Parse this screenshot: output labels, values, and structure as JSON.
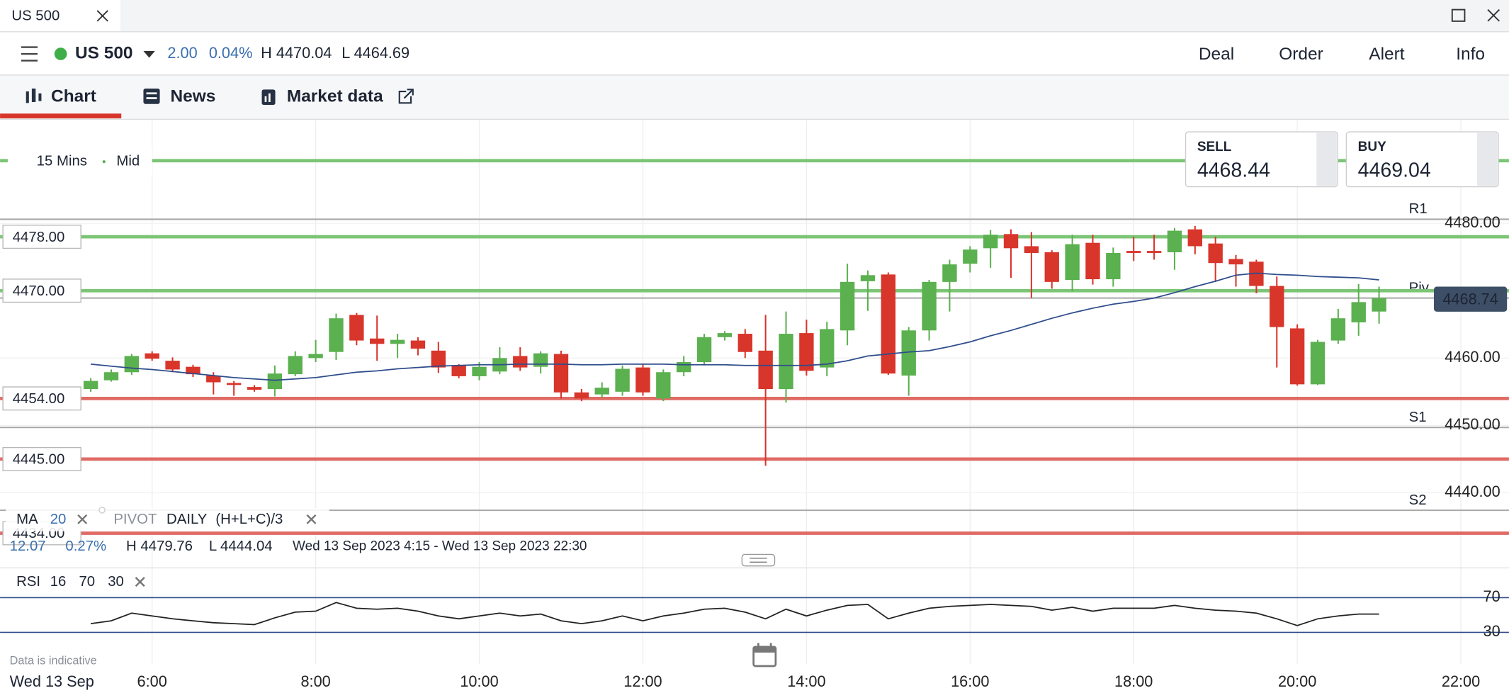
{
  "window": {
    "tab": "US 500"
  },
  "header": {
    "instrument": "US 500",
    "change": "2.00",
    "change_pct": "0.04%",
    "high": "H 4470.04",
    "low": "L 4464.69",
    "actions": [
      "Deal",
      "Order",
      "Alert",
      "Info"
    ]
  },
  "tabs": [
    "Chart",
    "News",
    "Market data"
  ],
  "chart": {
    "type": "candlestick",
    "interval": "15 Mins",
    "price_type": "Mid",
    "sell": {
      "label": "SELL",
      "price": "4468.44"
    },
    "buy": {
      "label": "BUY",
      "price": "4469.04"
    },
    "up_color": "#5bb04f",
    "down_color": "#d8352b",
    "x": [
      5.25,
      5.5,
      5.75,
      6,
      6.25,
      6.5,
      6.75,
      7,
      7.25,
      7.5,
      7.75,
      8,
      8.25,
      8.5,
      8.75,
      9,
      9.25,
      9.5,
      9.75,
      10,
      10.25,
      10.5,
      10.75,
      11,
      11.25,
      11.5,
      11.75,
      12,
      12.25,
      12.5,
      12.75,
      13,
      13.25,
      13.5,
      13.75,
      14,
      14.25,
      14.5,
      14.75,
      15,
      15.25,
      15.5,
      15.75,
      16,
      16.25,
      16.5,
      16.75,
      17,
      17.25,
      17.5,
      17.75,
      18,
      18.25,
      18.5,
      18.75,
      19,
      19.25,
      19.5,
      19.75,
      20,
      20.25,
      20.5,
      20.75,
      21
    ],
    "open": [
      4455.4,
      4456.7,
      4457.9,
      4460.7,
      4459.6,
      4458.7,
      4457.4,
      4456.3,
      4455.7,
      4455.4,
      4457.6,
      4460.0,
      4460.9,
      4466.4,
      4462.9,
      4462.1,
      4462.6,
      4461.1,
      4458.9,
      4457.3,
      4458.0,
      4460.3,
      4458.7,
      4460.6,
      4454.9,
      4454.6,
      4455.0,
      4458.6,
      4454.0,
      4457.9,
      4459.4,
      4463.1,
      4463.6,
      4461.1,
      4455.4,
      4463.7,
      4458.6,
      4464.1,
      4471.4,
      4472.4,
      4457.4,
      4464.1,
      4471.3,
      4474.0,
      4476.3,
      4478.4,
      4476.6,
      4475.7,
      4471.6,
      4477.1,
      4471.7,
      4475.9,
      4475.9,
      4475.7,
      4479.1,
      4477.0,
      4474.7,
      4474.3,
      4470.7,
      4464.4,
      4456.1,
      4462.6,
      4465.3,
      4466.9
    ],
    "high": [
      4457.0,
      4458.3,
      4460.6,
      4461.0,
      4460.1,
      4459.0,
      4457.9,
      4456.6,
      4456.0,
      4458.9,
      4461.0,
      4462.7,
      4466.6,
      4466.7,
      4466.3,
      4463.6,
      4463.1,
      4462.4,
      4459.1,
      4459.4,
      4461.6,
      4461.6,
      4461.0,
      4461.1,
      4455.4,
      4456.4,
      4458.9,
      4459.1,
      4458.3,
      4460.3,
      4463.6,
      4464.0,
      4464.3,
      4466.4,
      4466.9,
      4465.7,
      4465.4,
      4474.0,
      4473.0,
      4472.7,
      4464.6,
      4471.6,
      4474.6,
      4476.6,
      4479.0,
      4479.1,
      4478.7,
      4476.0,
      4478.3,
      4478.3,
      4476.4,
      4478.0,
      4478.3,
      4479.3,
      4479.6,
      4478.0,
      4475.3,
      4474.6,
      4472.1,
      4465.0,
      4462.7,
      4467.3,
      4471.0,
      4470.6
    ],
    "low": [
      4455.0,
      4456.5,
      4457.5,
      4459.6,
      4457.9,
      4457.2,
      4454.6,
      4454.4,
      4455.0,
      4454.3,
      4457.3,
      4459.4,
      4459.7,
      4461.9,
      4459.6,
      4460.0,
      4460.4,
      4457.8,
      4457.0,
      4456.7,
      4457.6,
      4458.1,
      4457.7,
      4454.0,
      4453.6,
      4454.1,
      4454.4,
      4454.4,
      4453.6,
      4457.3,
      4458.9,
      4462.6,
      4460.0,
      4444.0,
      4453.4,
      4457.4,
      4457.3,
      4461.9,
      4467.0,
      4457.5,
      4454.4,
      4462.6,
      4466.9,
      4472.7,
      4473.4,
      4471.9,
      4468.9,
      4470.3,
      4469.9,
      4470.9,
      4470.6,
      4474.4,
      4474.6,
      4473.1,
      4475.4,
      4471.3,
      4470.6,
      4469.6,
      4458.6,
      4455.9,
      4456.0,
      4462.1,
      4463.3,
      4465.1
    ],
    "close": [
      4456.6,
      4457.9,
      4460.3,
      4459.9,
      4458.3,
      4457.6,
      4456.4,
      4456.0,
      4455.3,
      4457.7,
      4460.3,
      4460.6,
      4465.9,
      4462.6,
      4462.1,
      4462.7,
      4461.4,
      4458.6,
      4457.3,
      4458.7,
      4460.0,
      4458.6,
      4460.7,
      4454.9,
      4454.0,
      4455.6,
      4458.4,
      4454.9,
      4457.9,
      4459.4,
      4463.1,
      4463.7,
      4460.9,
      4455.4,
      4463.6,
      4458.1,
      4464.3,
      4471.3,
      4472.3,
      4457.7,
      4464.1,
      4471.3,
      4473.9,
      4476.1,
      4478.3,
      4476.3,
      4475.6,
      4471.3,
      4476.9,
      4471.7,
      4475.6,
      4475.6,
      4475.6,
      4478.9,
      4476.6,
      4474.1,
      4473.9,
      4470.7,
      4464.6,
      4456.1,
      4462.4,
      4465.9,
      4468.3,
      4468.9
    ],
    "ma": {
      "name": "MA",
      "period": 20,
      "color": "#2f4d8c",
      "values": [
        4459.1,
        4458.8,
        4458.5,
        4458.3,
        4458.0,
        4457.7,
        4457.4,
        4457.1,
        4456.9,
        4456.7,
        4456.9,
        4457.1,
        4457.5,
        4457.9,
        4458.1,
        4458.4,
        4458.6,
        4458.8,
        4458.9,
        4459.0,
        4459.0,
        4459.1,
        4459.1,
        4459.1,
        4459.0,
        4459.0,
        4459.1,
        4459.1,
        4459.1,
        4459.0,
        4459.0,
        4459.0,
        4458.9,
        4458.9,
        4458.9,
        4458.9,
        4459.1,
        4459.6,
        4460.3,
        4460.6,
        4460.9,
        4461.1,
        4461.7,
        4462.4,
        4463.3,
        4464.1,
        4465.0,
        4465.9,
        4466.7,
        4467.4,
        4468.0,
        4468.4,
        4468.9,
        4469.7,
        4470.6,
        4471.4,
        4472.3,
        4472.6,
        4472.4,
        4472.3,
        4472.1,
        4472.0,
        4471.9,
        4471.6
      ]
    },
    "pivot": {
      "name": "PIVOT",
      "period": "DAILY",
      "formula": "(H+L+C)/3",
      "color": "#a9a9a9",
      "levels": [
        {
          "name": "R1",
          "value": 4480.6
        },
        {
          "name": "Piv",
          "value": 4468.9
        },
        {
          "name": "S1",
          "value": 4449.7
        },
        {
          "name": "S2",
          "value": 4437.4
        }
      ]
    },
    "price_lines": [
      {
        "value": 4489.3,
        "color": "#7cc576"
      },
      {
        "value": 4478,
        "label": "4478.00",
        "color": "#7cc576"
      },
      {
        "value": 4470,
        "label": "4470.00",
        "color": "#7cc576"
      },
      {
        "value": 4454,
        "label": "4454.00",
        "color": "#e06a64"
      },
      {
        "value": 4445,
        "label": "4445.00",
        "color": "#e06a64"
      },
      {
        "value": 4434,
        "label": "4434.00",
        "color": "#e06a64"
      }
    ],
    "last_price": 4468.74,
    "ylim": [
      4433.14,
      4495
    ],
    "yticks": [
      {
        "value": 4480,
        "label": "4480.00"
      },
      {
        "value": 4460,
        "label": "4460.00"
      },
      {
        "value": 4450,
        "label": "4450.00"
      },
      {
        "value": 4440,
        "label": "4440.00"
      }
    ],
    "xlim": [
      4.141,
      22.588
    ],
    "xticks": [
      {
        "value": 6,
        "label": "6:00"
      },
      {
        "value": 8,
        "label": "8:00"
      },
      {
        "value": 10,
        "label": "10:00"
      },
      {
        "value": 12,
        "label": "12:00"
      },
      {
        "value": 14,
        "label": "14:00"
      },
      {
        "value": 16,
        "label": "16:00"
      },
      {
        "value": 18,
        "label": "18:00"
      },
      {
        "value": 20,
        "label": "20:00"
      },
      {
        "value": 22,
        "label": "22:00"
      }
    ],
    "date_label": "Wed 13 Sep",
    "stats": {
      "change": "12.07",
      "change_pct": "0.27%",
      "high": "H 4479.76",
      "low": "L 4444.04",
      "range": "Wed 13 Sep 2023 4:15 - Wed 13 Sep 2023 22:30"
    },
    "rsi": {
      "name": "RSI",
      "period": 16,
      "upper": 70,
      "lower": 30,
      "color": "#222222",
      "band_color": "#2f4d8c",
      "ylim": [
        -6.7,
        104.4
      ],
      "yticks": [
        70,
        30
      ],
      "values": [
        40,
        43.3,
        52.2,
        48.9,
        45.6,
        43.3,
        41.1,
        40,
        38.9,
        46.7,
        53.3,
        54.4,
        64.4,
        57.8,
        56.7,
        57.8,
        54.4,
        48.9,
        45.6,
        48.9,
        52.2,
        48.9,
        51.1,
        43.3,
        40,
        43.3,
        48.9,
        43.3,
        48.9,
        52.2,
        56.7,
        57.8,
        53.3,
        45.6,
        56.7,
        48.9,
        55.6,
        61.1,
        62.2,
        45.6,
        52.2,
        57.8,
        60,
        61.1,
        62.2,
        61.1,
        60,
        55.6,
        58.9,
        54.4,
        57.8,
        57.8,
        57.8,
        61.1,
        57.8,
        55.6,
        54.4,
        52.2,
        45.6,
        37.8,
        45.6,
        48.9,
        51.1,
        51.1
      ]
    },
    "note": "Data is indicative"
  }
}
